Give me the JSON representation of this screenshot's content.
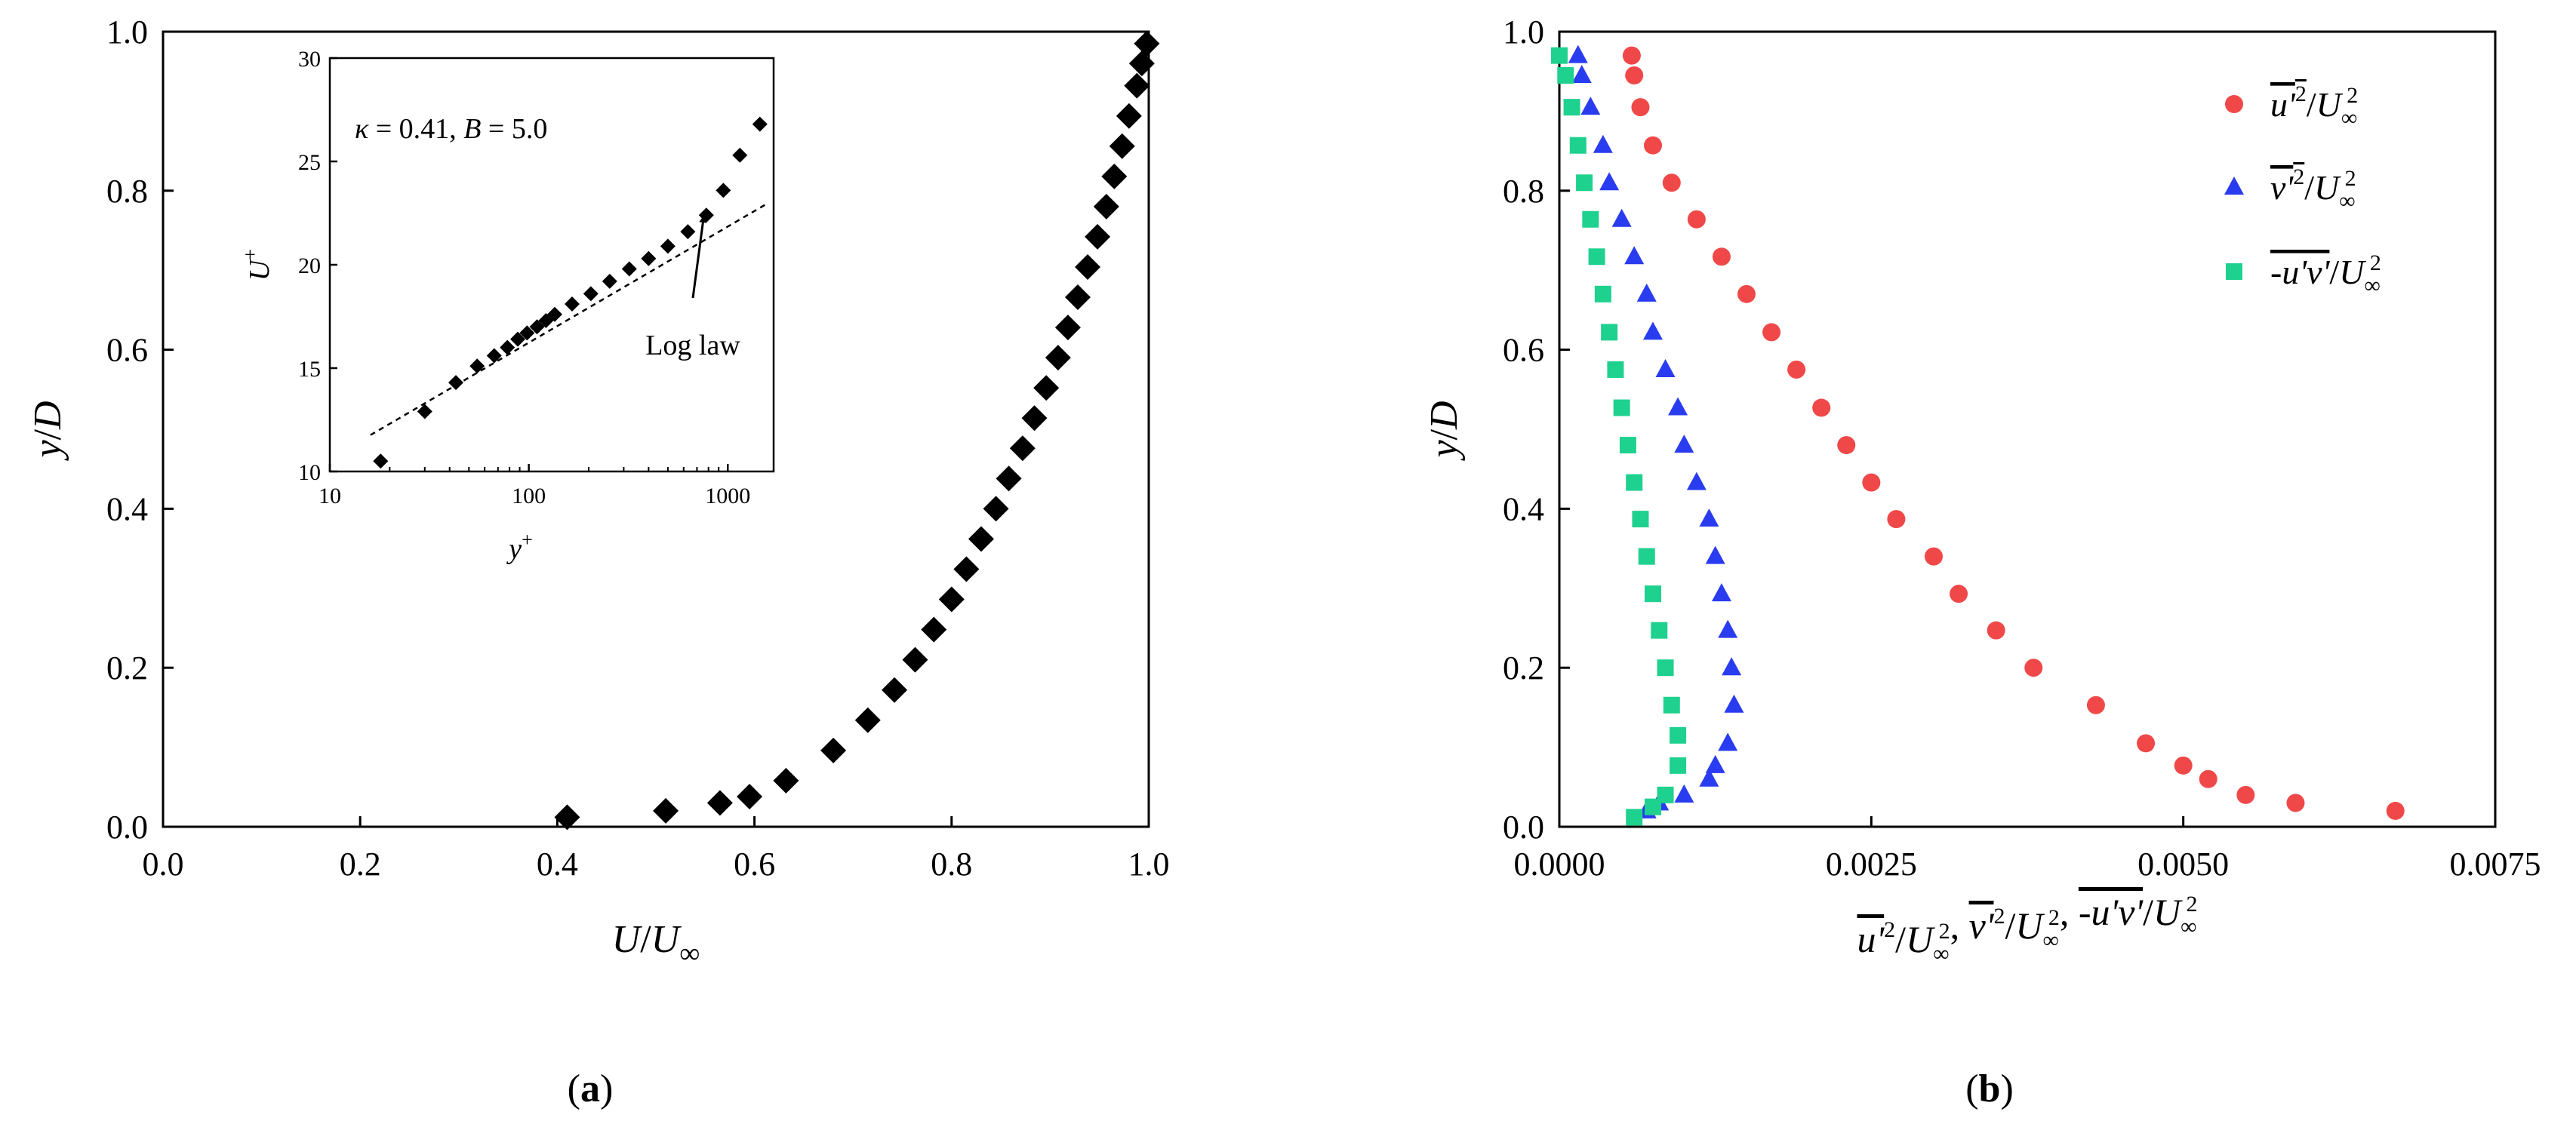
{
  "chart_data": [
    {
      "type": "scatter",
      "panel_label": {
        "open": "(",
        "letter": "a",
        "close": ")"
      },
      "xlabel": {
        "main": "U",
        "slash": "/",
        "sub_main": "U",
        "sub": "∞"
      },
      "ylabel": {
        "main": "y",
        "slash": "/",
        "rest": "D"
      },
      "xlim": [
        0,
        1.0
      ],
      "ylim": [
        0,
        1.0
      ],
      "xticks": [
        "0.0",
        "0.2",
        "0.4",
        "0.6",
        "0.8",
        "1.0"
      ],
      "yticks": [
        "0.0",
        "0.2",
        "0.4",
        "0.6",
        "0.8",
        "1.0"
      ],
      "marker": "diamond",
      "color": "#000000",
      "series": [
        {
          "name": "U/U∞",
          "points": [
            [
              0.41,
              0.012
            ],
            [
              0.51,
              0.02
            ],
            [
              0.565,
              0.03
            ],
            [
              0.595,
              0.038
            ],
            [
              0.632,
              0.058
            ],
            [
              0.68,
              0.096
            ],
            [
              0.715,
              0.134
            ],
            [
              0.742,
              0.172
            ],
            [
              0.763,
              0.21
            ],
            [
              0.782,
              0.248
            ],
            [
              0.8,
              0.286
            ],
            [
              0.815,
              0.324
            ],
            [
              0.83,
              0.362
            ],
            [
              0.845,
              0.4
            ],
            [
              0.858,
              0.438
            ],
            [
              0.872,
              0.476
            ],
            [
              0.884,
              0.514
            ],
            [
              0.896,
              0.552
            ],
            [
              0.908,
              0.59
            ],
            [
              0.918,
              0.628
            ],
            [
              0.928,
              0.666
            ],
            [
              0.938,
              0.704
            ],
            [
              0.948,
              0.742
            ],
            [
              0.957,
              0.78
            ],
            [
              0.965,
              0.818
            ],
            [
              0.973,
              0.856
            ],
            [
              0.98,
              0.894
            ],
            [
              0.988,
              0.932
            ],
            [
              0.993,
              0.96
            ],
            [
              0.998,
              0.985
            ]
          ]
        }
      ],
      "inset": {
        "type": "scatter",
        "xscale": "log",
        "xlim": [
          10,
          1700
        ],
        "ylim": [
          10,
          30
        ],
        "xticks": [
          "10",
          "100",
          "1000"
        ],
        "yticks": [
          "10",
          "15",
          "20",
          "25",
          "30"
        ],
        "xlabel": {
          "main": "y",
          "sup": "+"
        },
        "ylabel": {
          "main": "U",
          "sup": "+"
        },
        "annotation": {
          "kappa": "κ",
          "eq1": " = 0.41, ",
          "B": "B",
          "eq2": " = 5.0"
        },
        "arrow_label": "Log law",
        "log_law": {
          "kappa": 0.41,
          "B": 5.0
        },
        "points": [
          [
            18,
            10.5
          ],
          [
            30,
            12.9
          ],
          [
            43,
            14.3
          ],
          [
            55,
            15.1
          ],
          [
            67,
            15.6
          ],
          [
            78,
            16.0
          ],
          [
            88,
            16.4
          ],
          [
            98,
            16.7
          ],
          [
            110,
            17.0
          ],
          [
            122,
            17.3
          ],
          [
            135,
            17.6
          ],
          [
            165,
            18.1
          ],
          [
            205,
            18.6
          ],
          [
            255,
            19.2
          ],
          [
            320,
            19.8
          ],
          [
            400,
            20.3
          ],
          [
            500,
            20.9
          ],
          [
            630,
            21.6
          ],
          [
            780,
            22.4
          ],
          [
            950,
            23.6
          ],
          [
            1150,
            25.3
          ],
          [
            1450,
            26.8
          ]
        ]
      }
    },
    {
      "type": "scatter",
      "panel_label": {
        "open": "(",
        "letter": "b",
        "close": ")"
      },
      "xlabel": {
        "parts": [
          "u'2/U∞2",
          "v'2/U∞2",
          "-u'v'/U∞2"
        ],
        "sep": ", "
      },
      "ylabel": {
        "main": "y",
        "slash": "/",
        "rest": "D"
      },
      "xlim": [
        0,
        0.0075
      ],
      "ylim": [
        0,
        1.0
      ],
      "xticks": [
        "0.0000",
        "0.0025",
        "0.0050",
        "0.0075"
      ],
      "yticks": [
        "0.0",
        "0.2",
        "0.4",
        "0.6",
        "0.8",
        "1.0"
      ],
      "series": [
        {
          "name": "u'2/U∞2",
          "marker": "circle",
          "color": "#f04848",
          "legend": {
            "base": "u'",
            "sup": "2",
            "slash": "/",
            "den": "U",
            "den_sub": "∞",
            "den_sup": "2"
          },
          "points": [
            [
              0.0067,
              0.02
            ],
            [
              0.0059,
              0.03
            ],
            [
              0.0055,
              0.04
            ],
            [
              0.0052,
              0.06
            ],
            [
              0.005,
              0.077
            ],
            [
              0.0047,
              0.105
            ],
            [
              0.0043,
              0.153
            ],
            [
              0.0038,
              0.2
            ],
            [
              0.0035,
              0.247
            ],
            [
              0.0032,
              0.293
            ],
            [
              0.003,
              0.34
            ],
            [
              0.0027,
              0.387
            ],
            [
              0.0025,
              0.433
            ],
            [
              0.0023,
              0.48
            ],
            [
              0.0021,
              0.527
            ],
            [
              0.0019,
              0.575
            ],
            [
              0.0017,
              0.622
            ],
            [
              0.0015,
              0.67
            ],
            [
              0.0013,
              0.717
            ],
            [
              0.0011,
              0.764
            ],
            [
              0.0009,
              0.81
            ],
            [
              0.00075,
              0.857
            ],
            [
              0.00065,
              0.905
            ],
            [
              0.0006,
              0.945
            ],
            [
              0.00058,
              0.97
            ]
          ]
        },
        {
          "name": "v'2/U∞2",
          "marker": "triangle",
          "color": "#2a3cf0",
          "legend": {
            "base": "v'",
            "sup": "2",
            "slash": "/",
            "den": "U",
            "den_sub": "∞",
            "den_sup": "2"
          },
          "points": [
            [
              0.0007,
              0.02
            ],
            [
              0.0008,
              0.03
            ],
            [
              0.001,
              0.04
            ],
            [
              0.0012,
              0.06
            ],
            [
              0.00125,
              0.077
            ],
            [
              0.00135,
              0.105
            ],
            [
              0.0014,
              0.153
            ],
            [
              0.00138,
              0.2
            ],
            [
              0.00135,
              0.247
            ],
            [
              0.0013,
              0.293
            ],
            [
              0.00125,
              0.34
            ],
            [
              0.0012,
              0.387
            ],
            [
              0.0011,
              0.433
            ],
            [
              0.001,
              0.48
            ],
            [
              0.00095,
              0.527
            ],
            [
              0.00085,
              0.575
            ],
            [
              0.00075,
              0.622
            ],
            [
              0.0007,
              0.67
            ],
            [
              0.0006,
              0.717
            ],
            [
              0.0005,
              0.764
            ],
            [
              0.0004,
              0.81
            ],
            [
              0.00035,
              0.857
            ],
            [
              0.00025,
              0.905
            ],
            [
              0.00018,
              0.945
            ],
            [
              0.00015,
              0.97
            ]
          ]
        },
        {
          "name": "-u'v'/U∞2",
          "marker": "square",
          "color": "#1fd18e",
          "legend": {
            "base": "-u'v'",
            "sup": "",
            "slash": "/",
            "den": "U",
            "den_sub": "∞",
            "den_sup": "2"
          },
          "points": [
            [
              0.0006,
              0.012
            ],
            [
              0.00075,
              0.025
            ],
            [
              0.00085,
              0.04
            ],
            [
              0.00095,
              0.077
            ],
            [
              0.00095,
              0.115
            ],
            [
              0.0009,
              0.153
            ],
            [
              0.00085,
              0.2
            ],
            [
              0.0008,
              0.247
            ],
            [
              0.00075,
              0.293
            ],
            [
              0.0007,
              0.34
            ],
            [
              0.00065,
              0.387
            ],
            [
              0.0006,
              0.433
            ],
            [
              0.00055,
              0.48
            ],
            [
              0.0005,
              0.527
            ],
            [
              0.00045,
              0.575
            ],
            [
              0.0004,
              0.622
            ],
            [
              0.00035,
              0.67
            ],
            [
              0.0003,
              0.717
            ],
            [
              0.00025,
              0.764
            ],
            [
              0.0002,
              0.81
            ],
            [
              0.00015,
              0.857
            ],
            [
              0.0001,
              0.905
            ],
            [
              5e-05,
              0.945
            ],
            [
              0.0,
              0.97
            ]
          ]
        }
      ]
    }
  ]
}
